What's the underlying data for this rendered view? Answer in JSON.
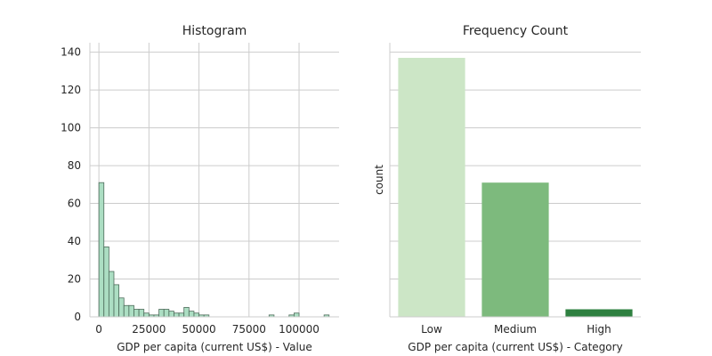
{
  "chart_data": [
    {
      "type": "bar",
      "title": "Histogram",
      "xlabel": "GDP per capita (current US$) - Value",
      "ylabel": "",
      "bins_x_range": [
        0,
        115000
      ],
      "bin_counts": [
        71,
        37,
        24,
        17,
        10,
        6,
        6,
        4,
        4,
        2,
        1,
        1,
        4,
        4,
        3,
        2,
        2,
        5,
        3,
        2,
        1,
        1,
        0,
        0,
        0,
        0,
        0,
        0,
        0,
        0,
        0,
        0,
        0,
        0,
        1,
        0,
        0,
        0,
        1,
        2,
        0,
        0,
        0,
        0,
        0,
        1
      ],
      "xlim": [
        -4500,
        120000
      ],
      "ylim": [
        0,
        145
      ],
      "xticks": [
        0,
        25000,
        50000,
        75000,
        100000
      ],
      "xtick_labels": [
        "0",
        "25000",
        "50000",
        "75000",
        "100000"
      ],
      "yticks": [
        0,
        20,
        40,
        60,
        80,
        100,
        120,
        140
      ],
      "ytick_labels": [
        "0",
        "20",
        "40",
        "60",
        "80",
        "100",
        "120",
        "140"
      ],
      "bar_color": "#a8dcc0",
      "edge_color": "#4d6b5a",
      "grid": true
    },
    {
      "type": "bar",
      "title": "Frequency Count",
      "xlabel": "GDP per capita (current US$) - Category",
      "ylabel": "count",
      "categories": [
        "Low",
        "Medium",
        "High"
      ],
      "values": [
        137,
        71,
        4
      ],
      "colors": [
        "#cce6c6",
        "#7dba7d",
        "#2e8040"
      ],
      "ylim": [
        0,
        145
      ],
      "grid": true,
      "shared_y": true
    }
  ]
}
